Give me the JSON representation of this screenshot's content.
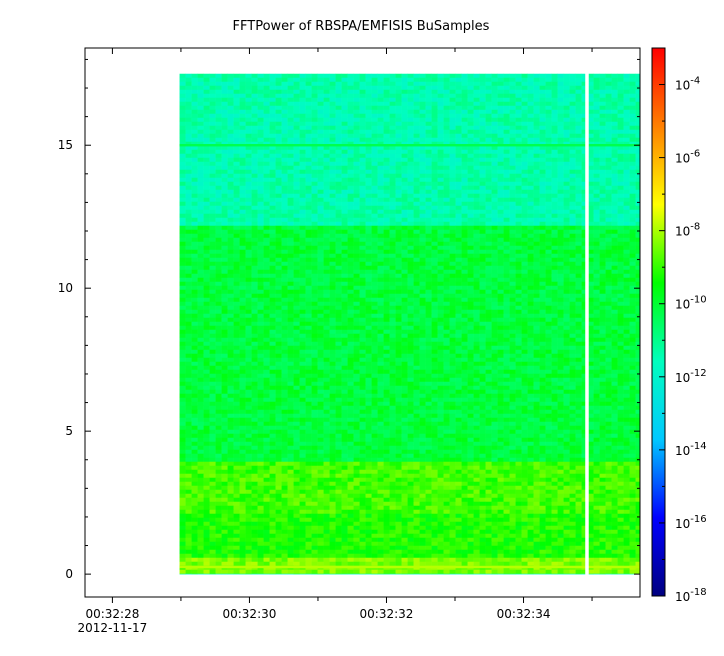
{
  "chart_data": {
    "type": "heatmap",
    "title": "FFTPower of RBSPA/EMFISIS  BuSamples",
    "xlabel": "",
    "ylabel": "",
    "x_date": "2012-11-17",
    "x_ticks": [
      {
        "t": 28,
        "label": "00:32:28",
        "sublabel": "2012-11-17"
      },
      {
        "t": 30,
        "label": "00:32:30"
      },
      {
        "t": 32,
        "label": "00:32:32"
      },
      {
        "t": 34,
        "label": "00:32:34"
      }
    ],
    "x_minor_tick_seconds": [
      29,
      31,
      33,
      35
    ],
    "xlim_seconds": [
      27.6,
      35.7
    ],
    "y_ticks": [
      0,
      5,
      10,
      15
    ],
    "ylim": [
      -0.8,
      18.4
    ],
    "data_extent": {
      "t_start_seconds": 28.98,
      "t_end_seconds": 35.7,
      "f_min": 0,
      "f_max": 17.5
    },
    "gap": {
      "t_seconds": 34.93
    },
    "colorbar": {
      "scale": "log",
      "range": [
        1e-18,
        0.001
      ],
      "tick_exponents": [
        -18,
        -16,
        -14,
        -12,
        -10,
        -8,
        -6,
        -4
      ],
      "colors": [
        "#000080",
        "#0000ff",
        "#00c8ff",
        "#00ffbe",
        "#00ff00",
        "#ffff00",
        "#ff8000",
        "#ff0000"
      ]
    },
    "bands": [
      {
        "f_from": 0,
        "f_to": 0.55,
        "log10_power": -8.4,
        "description_color": "#f5a000"
      },
      {
        "f_from": 0.55,
        "f_to": 2.1,
        "log10_power": -9.2
      },
      {
        "f_from": 2.1,
        "f_to": 3.9,
        "log10_power": -8.9
      },
      {
        "f_from": 3.9,
        "f_to": 12.2,
        "log10_power": -10.1
      },
      {
        "f_from": 12.2,
        "f_to": 17.5,
        "log10_power": -11.4
      }
    ],
    "lines": [
      {
        "f": 15.0,
        "log10_power": -10.3
      },
      {
        "f": 0.25,
        "log10_power": -7.9
      }
    ]
  }
}
